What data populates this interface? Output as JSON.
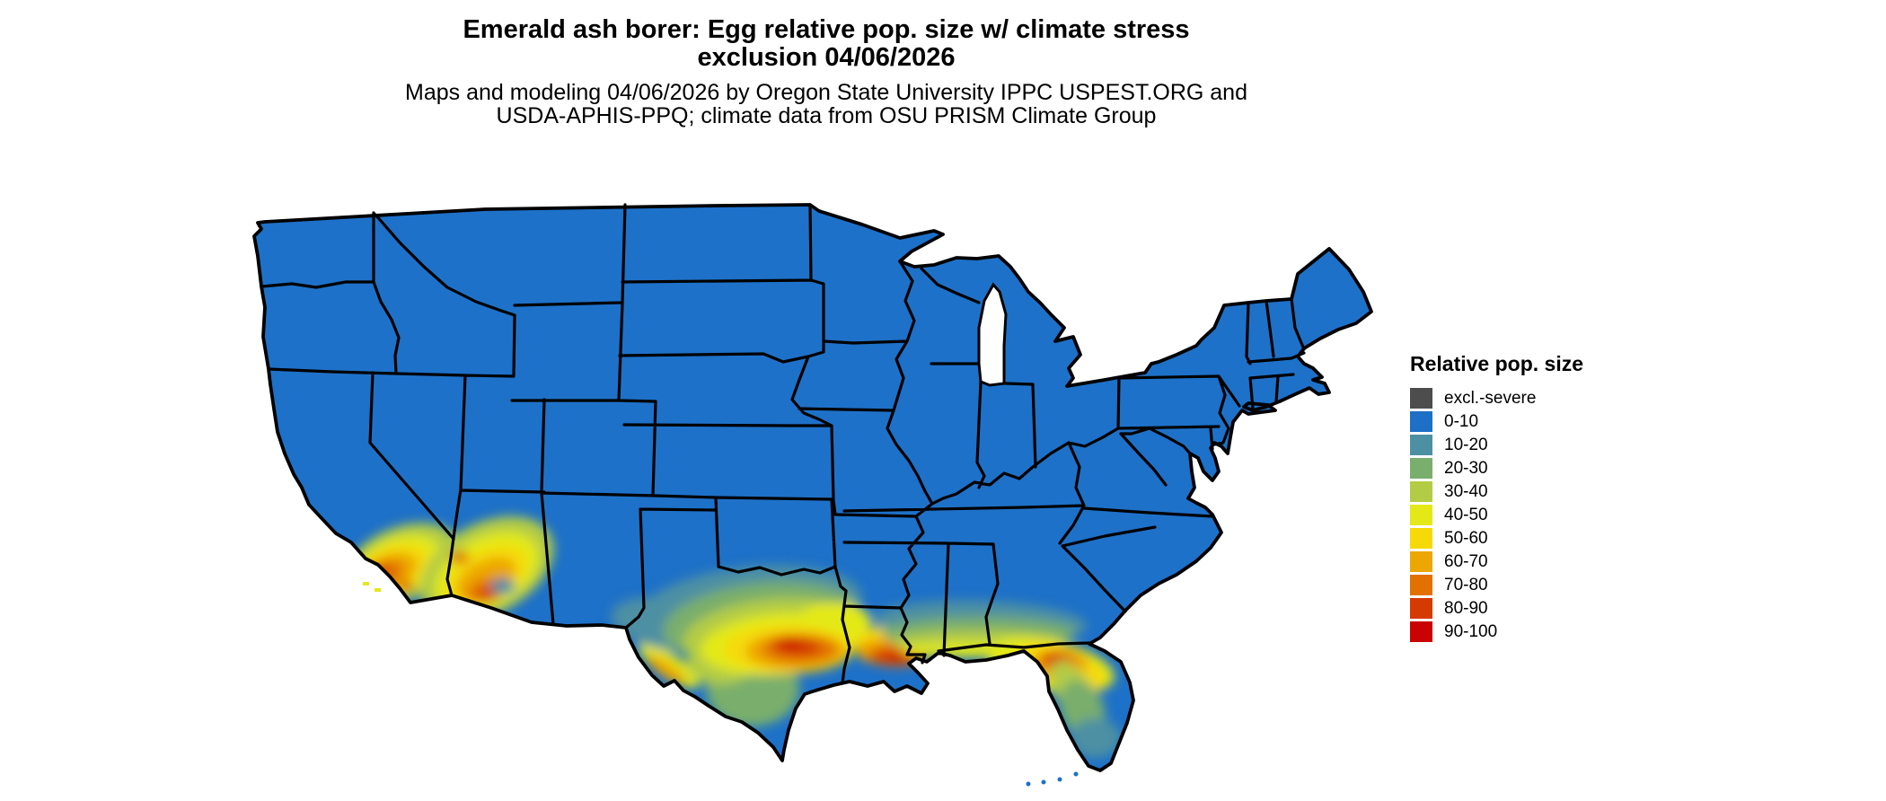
{
  "title": {
    "line1": "Emerald ash borer: Egg relative pop. size w/ climate stress",
    "line2": "exclusion 04/06/2026"
  },
  "subtitle": {
    "line1": "Maps and modeling 04/06/2026 by Oregon State University IPPC USPEST.ORG and",
    "line2": "USDA-APHIS-PPQ; climate data from OSU PRISM Climate Group"
  },
  "legend": {
    "title": "Relative pop. size",
    "items": [
      {
        "key": "excl",
        "label": "excl.-severe",
        "color": "#4d4d4d"
      },
      {
        "key": "b0_10",
        "label": "0-10",
        "color": "#1d70c6"
      },
      {
        "key": "b10_20",
        "label": "10-20",
        "color": "#4e90a3"
      },
      {
        "key": "b20_30",
        "label": "20-30",
        "color": "#79ae6c"
      },
      {
        "key": "b30_40",
        "label": "30-40",
        "color": "#b3cc45"
      },
      {
        "key": "b40_50",
        "label": "40-50",
        "color": "#e3e919"
      },
      {
        "key": "b50_60",
        "label": "50-60",
        "color": "#f5da07"
      },
      {
        "key": "b60_70",
        "label": "60-70",
        "color": "#eda705"
      },
      {
        "key": "b70_80",
        "label": "70-80",
        "color": "#e17202"
      },
      {
        "key": "b80_90",
        "label": "80-90",
        "color": "#d53a03"
      },
      {
        "key": "b90_100",
        "label": "90-100",
        "color": "#c90301"
      }
    ]
  },
  "map": {
    "land_color": "#1e71c8",
    "border_color": "#000000",
    "water_color": "#ffffff",
    "base_band": "0-10",
    "hot_spots": [
      {
        "region": "southern California coast and mountains",
        "bands": "30-100"
      },
      {
        "region": "southern and central Arizona",
        "bands": "30-90"
      },
      {
        "region": "central and eastern Texas",
        "bands": "10-100"
      },
      {
        "region": "Louisiana and Gulf Coast",
        "bands": "40-100"
      },
      {
        "region": "southern Mississippi / Alabama / Georgia coastal band",
        "bands": "10-50"
      },
      {
        "region": "northern and central Florida",
        "bands": "10-90"
      }
    ]
  }
}
